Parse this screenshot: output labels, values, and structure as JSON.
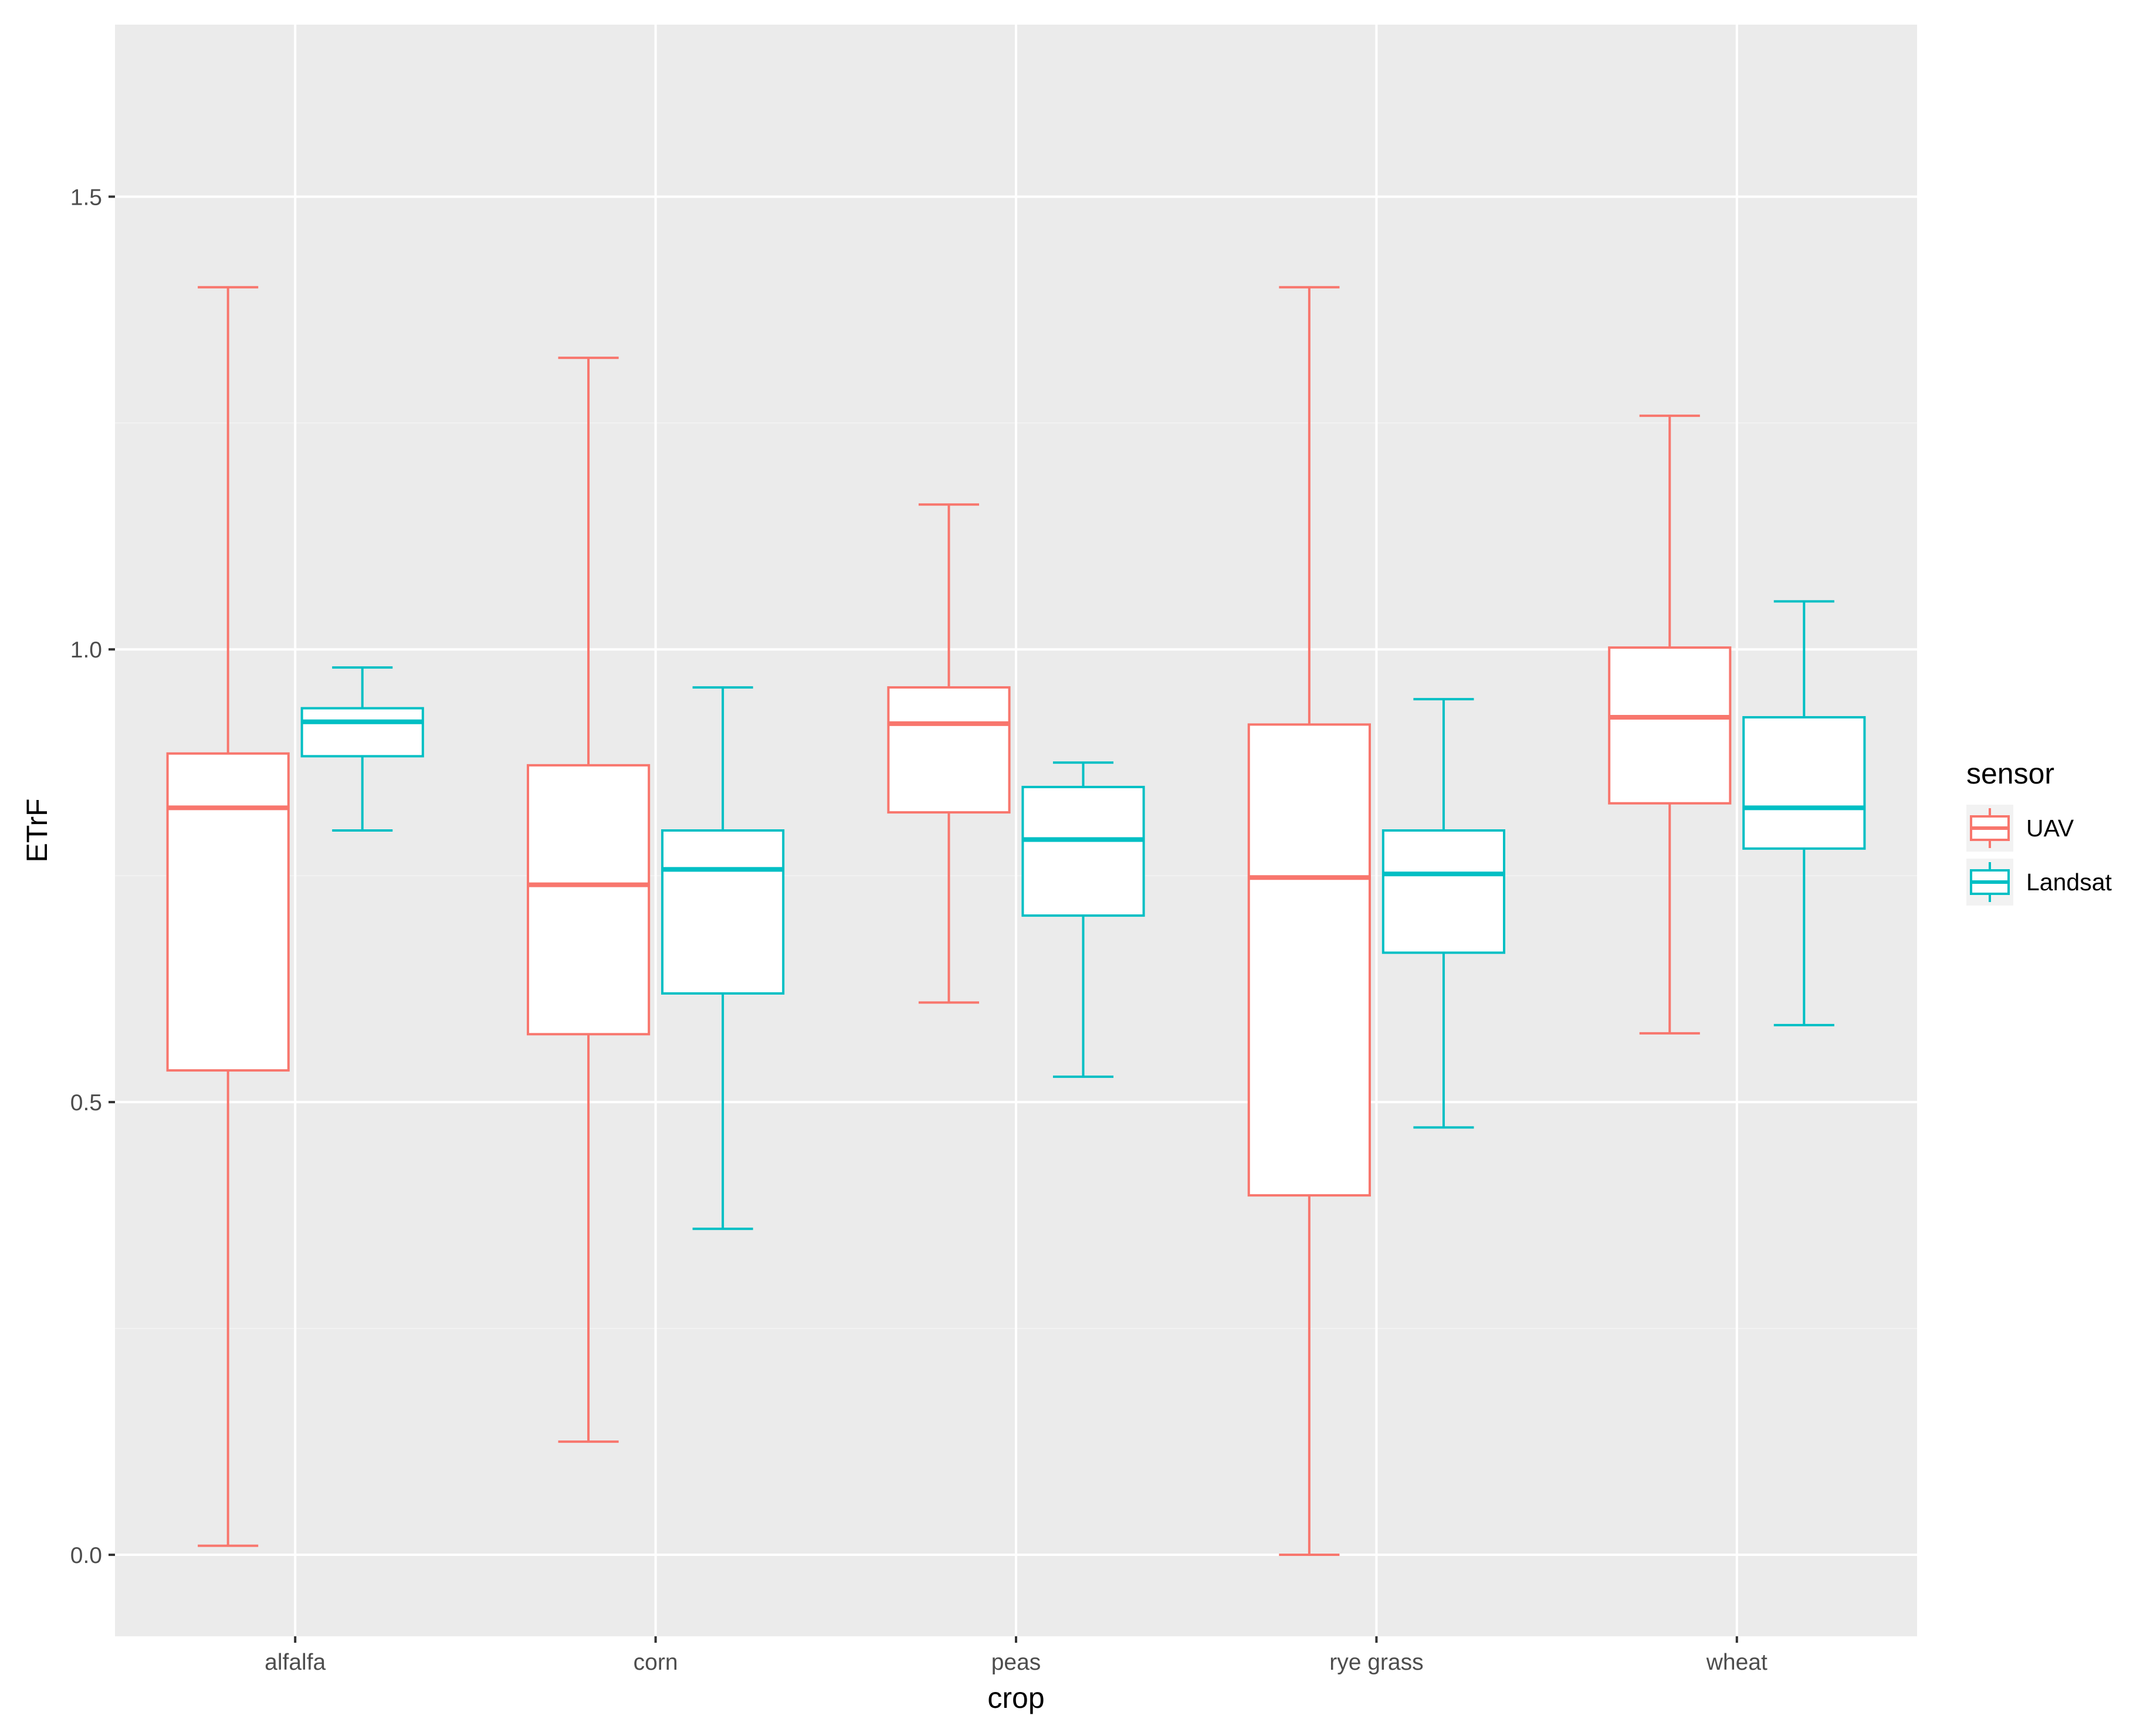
{
  "chart_data": {
    "type": "boxplot",
    "title": "",
    "xlabel": "crop",
    "ylabel": "ETrF",
    "ylim": [
      -0.09,
      1.69
    ],
    "y_ticks": [
      0.0,
      0.5,
      1.0,
      1.5
    ],
    "y_tick_labels": [
      "0.0",
      "0.5",
      "1.0",
      "1.5"
    ],
    "categories": [
      "alfalfa",
      "corn",
      "peas",
      "rye grass",
      "wheat"
    ],
    "grid": true,
    "legend": {
      "title": "sensor",
      "position": "right",
      "entries": [
        "UAV",
        "Landsat"
      ]
    },
    "series": [
      {
        "name": "UAV",
        "color": "#F8766D",
        "boxes": [
          {
            "category": "alfalfa",
            "whisker_low": 0.01,
            "q1": 0.535,
            "median": 0.825,
            "q3": 0.885,
            "whisker_high": 1.4
          },
          {
            "category": "corn",
            "whisker_low": 0.125,
            "q1": 0.575,
            "median": 0.74,
            "q3": 0.872,
            "whisker_high": 1.322
          },
          {
            "category": "peas",
            "whisker_low": 0.61,
            "q1": 0.82,
            "median": 0.918,
            "q3": 0.958,
            "whisker_high": 1.16
          },
          {
            "category": "rye grass",
            "whisker_low": 0.0,
            "q1": 0.397,
            "median": 0.748,
            "q3": 0.917,
            "whisker_high": 1.4
          },
          {
            "category": "wheat",
            "whisker_low": 0.576,
            "q1": 0.83,
            "median": 0.925,
            "q3": 1.002,
            "whisker_high": 1.258
          }
        ]
      },
      {
        "name": "Landsat",
        "color": "#00BFC4",
        "boxes": [
          {
            "category": "alfalfa",
            "whisker_low": 0.8,
            "q1": 0.882,
            "median": 0.92,
            "q3": 0.935,
            "whisker_high": 0.98
          },
          {
            "category": "corn",
            "whisker_low": 0.36,
            "q1": 0.62,
            "median": 0.757,
            "q3": 0.8,
            "whisker_high": 0.958
          },
          {
            "category": "peas",
            "whisker_low": 0.528,
            "q1": 0.706,
            "median": 0.79,
            "q3": 0.848,
            "whisker_high": 0.875
          },
          {
            "category": "rye grass",
            "whisker_low": 0.472,
            "q1": 0.665,
            "median": 0.752,
            "q3": 0.8,
            "whisker_high": 0.945
          },
          {
            "category": "wheat",
            "whisker_low": 0.585,
            "q1": 0.78,
            "median": 0.825,
            "q3": 0.925,
            "whisker_high": 1.053
          }
        ]
      }
    ]
  }
}
